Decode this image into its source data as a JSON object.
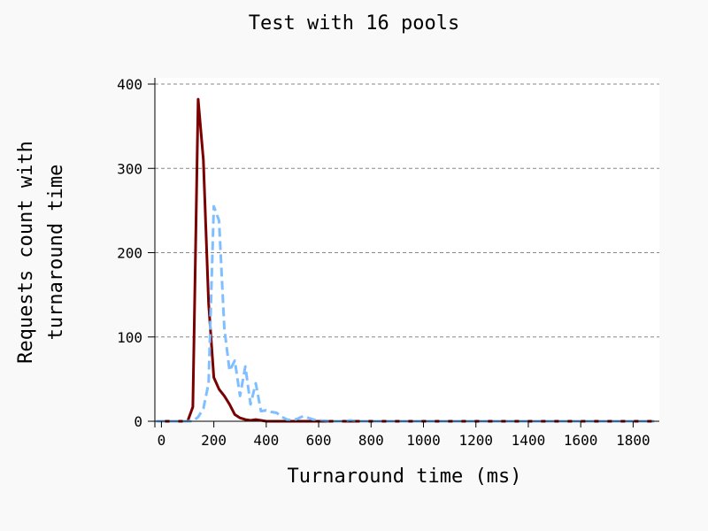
{
  "chart_data": {
    "type": "line",
    "title": "Test with 16 pools",
    "xlabel": "Turnaround time (ms)",
    "ylabel_lines": [
      "Requests count with",
      "turnaround time"
    ],
    "xlim": [
      -25,
      1900
    ],
    "ylim": [
      0,
      400
    ],
    "x_ticks": [
      0,
      200,
      400,
      600,
      800,
      1000,
      1200,
      1400,
      1600,
      1800
    ],
    "y_ticks": [
      0,
      100,
      200,
      300,
      400
    ],
    "grid": "horizontal-dashed",
    "series": [
      {
        "color": "#7a0000",
        "dash": "solid",
        "points": [
          [
            -20,
            0
          ],
          [
            0,
            0
          ],
          [
            20,
            0
          ],
          [
            40,
            0
          ],
          [
            60,
            0
          ],
          [
            80,
            0
          ],
          [
            100,
            0
          ],
          [
            120,
            17
          ],
          [
            140,
            382
          ],
          [
            160,
            310
          ],
          [
            180,
            140
          ],
          [
            200,
            52
          ],
          [
            220,
            38
          ],
          [
            240,
            30
          ],
          [
            260,
            20
          ],
          [
            280,
            8
          ],
          [
            300,
            4
          ],
          [
            320,
            2
          ],
          [
            340,
            1
          ],
          [
            360,
            2
          ],
          [
            380,
            1
          ],
          [
            400,
            0
          ],
          [
            450,
            0
          ],
          [
            500,
            0
          ],
          [
            550,
            0
          ],
          [
            600,
            0
          ],
          [
            700,
            0
          ],
          [
            800,
            0
          ],
          [
            1000,
            0
          ],
          [
            1200,
            0
          ],
          [
            1400,
            0
          ],
          [
            1600,
            0
          ],
          [
            1800,
            0
          ],
          [
            1880,
            0
          ]
        ]
      },
      {
        "color": "#7fbfff",
        "dash": "dashed",
        "points": [
          [
            -20,
            0
          ],
          [
            0,
            0
          ],
          [
            50,
            0
          ],
          [
            100,
            0
          ],
          [
            120,
            0
          ],
          [
            140,
            5
          ],
          [
            160,
            15
          ],
          [
            180,
            45
          ],
          [
            200,
            255
          ],
          [
            220,
            238
          ],
          [
            240,
            110
          ],
          [
            260,
            60
          ],
          [
            280,
            72
          ],
          [
            300,
            30
          ],
          [
            320,
            65
          ],
          [
            340,
            20
          ],
          [
            360,
            45
          ],
          [
            380,
            12
          ],
          [
            400,
            13
          ],
          [
            420,
            11
          ],
          [
            440,
            10
          ],
          [
            460,
            5
          ],
          [
            480,
            2
          ],
          [
            500,
            1
          ],
          [
            520,
            3
          ],
          [
            540,
            6
          ],
          [
            560,
            4
          ],
          [
            580,
            2
          ],
          [
            600,
            1
          ],
          [
            650,
            0
          ],
          [
            700,
            0
          ],
          [
            720,
            1
          ],
          [
            750,
            0
          ],
          [
            800,
            0
          ],
          [
            1000,
            0
          ],
          [
            1200,
            0
          ],
          [
            1400,
            0
          ],
          [
            1600,
            0
          ],
          [
            1800,
            0
          ],
          [
            1880,
            0
          ]
        ]
      }
    ]
  }
}
